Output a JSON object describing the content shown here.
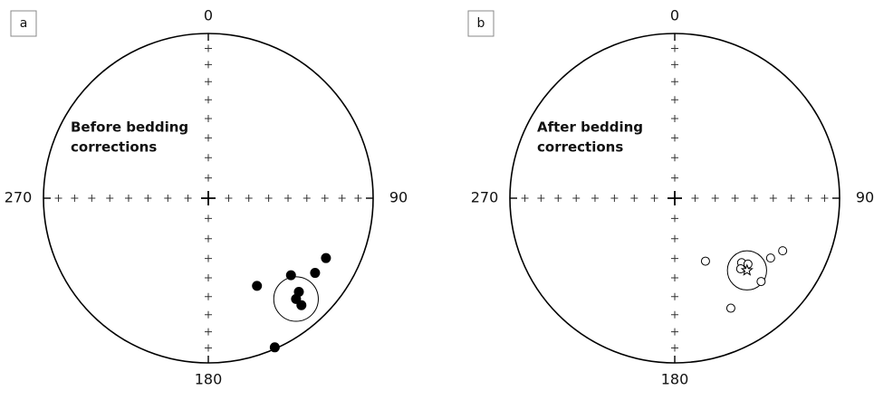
{
  "chart_data": [
    {
      "type": "stereonet",
      "panel_label": "a",
      "label_lines": [
        "Before bedding",
        "corrections"
      ],
      "dec_ticks": [
        0,
        90,
        180,
        270
      ],
      "inc_ticks": [
        10,
        20,
        30,
        40,
        50,
        60,
        70,
        80
      ],
      "marker": "filled",
      "color": "#000000",
      "dec": [
        117,
        125,
        133,
        151,
        136,
        139,
        139,
        156
      ],
      "inc": [
        21,
        22,
        32,
        39,
        22,
        20,
        15,
        1
      ],
      "mean": {
        "dec": 139,
        "inc": 20,
        "a95": 14
      }
    },
    {
      "type": "stereonet",
      "panel_label": "b",
      "label_lines": [
        "After bedding",
        "corrections"
      ],
      "dec_ticks": [
        0,
        90,
        180,
        270
      ],
      "inc_ticks": [
        10,
        20,
        30,
        40,
        50,
        60,
        70,
        80
      ],
      "marker": "open",
      "color": "#000000",
      "dec": [
        154,
        134,
        132,
        137,
        122,
        116,
        134,
        153
      ],
      "inc": [
        55,
        43,
        40,
        41,
        32,
        28,
        28,
        26
      ],
      "mean": {
        "dec": 135,
        "inc": 38,
        "a95": 11
      },
      "mean_marker": "star"
    }
  ]
}
